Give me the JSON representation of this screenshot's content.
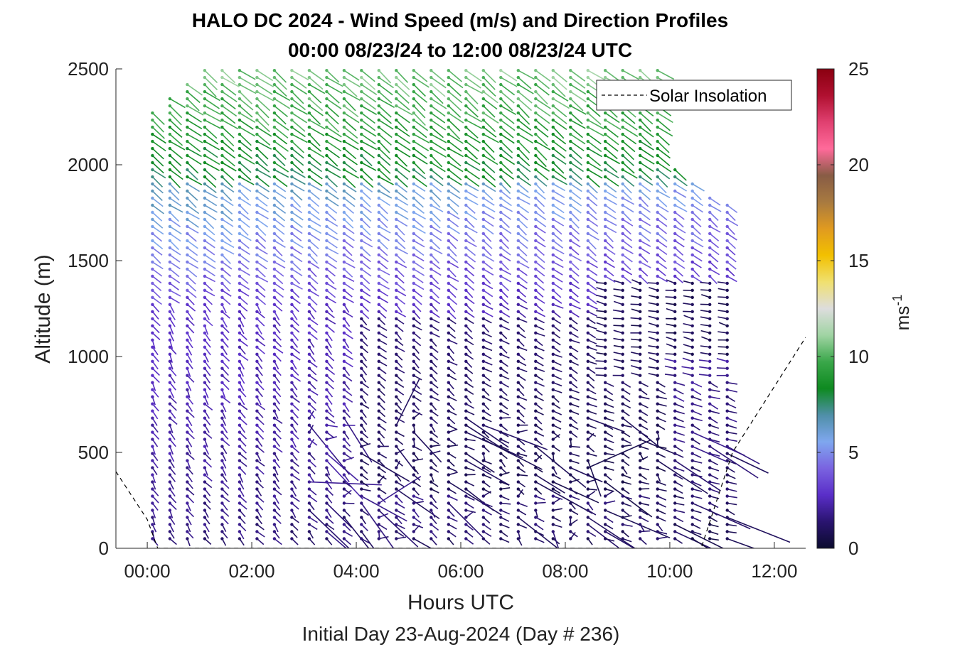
{
  "chart_data": {
    "type": "quiver",
    "title_line1": "HALO DC 2024 - Wind Speed (m/s) and Direction Profiles",
    "title_line2": "00:00 08/23/24 to 12:00 08/23/24  UTC",
    "xlabel": "Hours UTC",
    "ylabel": "Altitude (m)",
    "subcaption": "Initial Day 23-Aug-2024 (Day # 236)",
    "x_unit": "hours UTC",
    "xlim": [
      -0.6,
      12.6
    ],
    "ylim": [
      0,
      2500
    ],
    "x_ticks": [
      0,
      2,
      4,
      6,
      8,
      10,
      12
    ],
    "x_tick_labels": [
      "00:00",
      "02:00",
      "04:00",
      "06:00",
      "08:00",
      "10:00",
      "12:00"
    ],
    "y_ticks": [
      0,
      500,
      1000,
      1500,
      2000,
      2500
    ],
    "y_tick_labels": [
      "0",
      "500",
      "1000",
      "1500",
      "2000",
      "2500"
    ],
    "profile_times_start": 0.1,
    "profile_times_end": 11.1,
    "profile_interval_hours": 0.3333,
    "altitude_bin_start": 50,
    "altitude_bin_step": 37,
    "legend": {
      "label": "Solar Insolation",
      "position": "top-right",
      "line_style": "dashed"
    },
    "solar_insolation_curve": {
      "x": [
        -0.6,
        0.0,
        0.2,
        0.5,
        1,
        2,
        3,
        4,
        5,
        6,
        7,
        8,
        9,
        10,
        10.6,
        11.2,
        12.6
      ],
      "y": [
        400,
        150,
        0,
        0,
        0,
        0,
        0,
        0,
        0,
        0,
        0,
        0,
        0,
        0,
        0,
        500,
        1100
      ]
    },
    "colorbar": {
      "label": "ms",
      "label_superscript": "-1",
      "range": [
        0,
        25
      ],
      "ticks": [
        0,
        5,
        10,
        15,
        20,
        25
      ],
      "colors": [
        "#0b0b2e",
        "#2a1470",
        "#5a2ec8",
        "#7a63e0",
        "#7fa7ef",
        "#4f8fa8",
        "#0e8a20",
        "#3aa74a",
        "#a0d4a3",
        "#dddddd",
        "#f0e070",
        "#f2c000",
        "#e09a20",
        "#a87a40",
        "#885c45",
        "#ff6a9a",
        "#e04070",
        "#b01030",
        "#8a0010"
      ]
    },
    "wind_speed_regimes": [
      {
        "altitude_range": [
          1900,
          2500
        ],
        "speed_ms": "6-11",
        "color": "green"
      },
      {
        "altitude_range": [
          1300,
          1900
        ],
        "speed_ms": "3-6",
        "color": "blue/purple"
      },
      {
        "altitude_range": [
          0,
          1300
        ],
        "speed_ms": "0-3",
        "color": "dark purple/navy"
      }
    ]
  }
}
